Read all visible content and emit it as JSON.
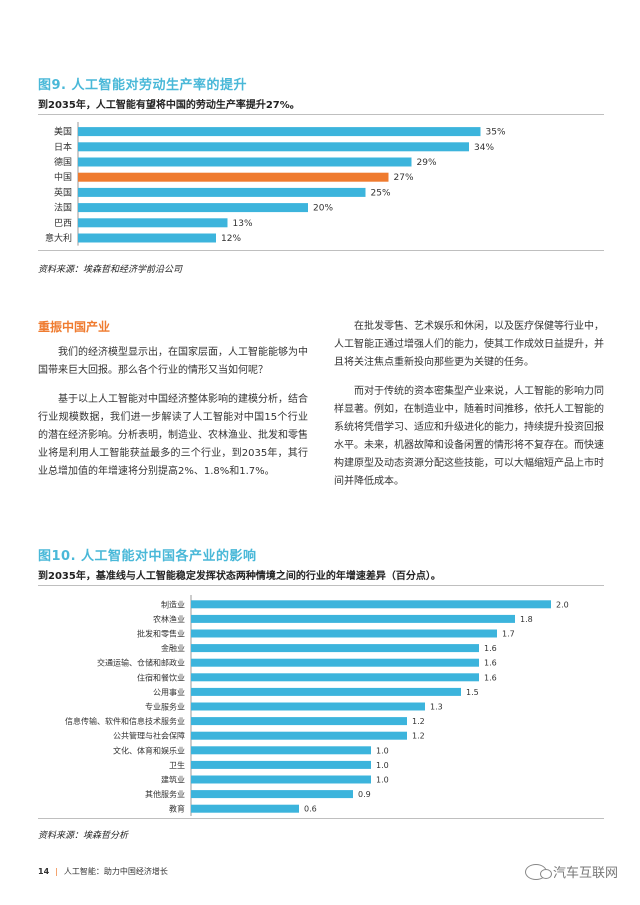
{
  "figure9": {
    "title": "图9. 人工智能对劳动生产率的提升",
    "subtitle": "到2035年，人工智能有望将中国的劳动生产率提升27%。",
    "source": "资料来源：埃森哲和经济学前沿公司"
  },
  "section": {
    "title": "重振中国产业",
    "left_paragraphs": [
      "我们的经济模型显示出，在国家层面，人工智能能够为中国带来巨大回报。那么各个行业的情形又当如何呢？",
      "基于以上人工智能对中国经济整体影响的建模分析，结合行业规模数据，我们进一步解读了人工智能对中国15个行业的潜在经济影响。分析表明，制造业、农林渔业、批发和零售业将是利用人工智能获益最多的三个行业，到2035年，其行业总增加值的年增速将分别提高2%、1.8%和1.7%。"
    ],
    "right_paragraphs": [
      "在批发零售、艺术娱乐和休闲，以及医疗保健等行业中，人工智能正通过增强人们的能力，使其工作成效日益提升，并且将关注焦点重新投向那些更为关键的任务。",
      "而对于传统的资本密集型产业来说，人工智能的影响力同样显著。例如，在制造业中，随着时间推移，依托人工智能的系统将凭借学习、适应和升级进化的能力，持续提升投资回报水平。未来，机器故障和设备闲置的情形将不复存在。而快速构建原型及动态资源分配这些技能，可以大幅缩短产品上市时间并降低成本。"
    ]
  },
  "figure10": {
    "title": "图10. 人工智能对中国各产业的影响",
    "subtitle": "到2035年，基准线与人工智能稳定发挥状态两种情境之间的行业的年增速差异（百分点）。",
    "source": "资料来源：埃森哲分析"
  },
  "footer": {
    "page": "14",
    "text": "人工智能：助力中国经济增长",
    "watermark": "汽车互联网"
  },
  "chart_data": [
    {
      "type": "bar",
      "orientation": "horizontal",
      "categories": [
        "美国",
        "日本",
        "德国",
        "中国",
        "英国",
        "法国",
        "巴西",
        "意大利"
      ],
      "values": [
        35,
        34,
        29,
        27,
        25,
        20,
        13,
        12
      ],
      "value_labels": [
        "35%",
        "34%",
        "29%",
        "27%",
        "25%",
        "20%",
        "13%",
        "12%"
      ],
      "highlight_index": 3,
      "colors": {
        "bar": "#3cb4dc",
        "highlight": "#ef7b2f",
        "axis": "#9a9a9a"
      }
    },
    {
      "type": "bar",
      "orientation": "horizontal",
      "categories": [
        "制造业",
        "农林渔业",
        "批发和零售业",
        "金融业",
        "交通运输、仓储和邮政业",
        "住宿和餐饮业",
        "公用事业",
        "专业服务业",
        "信息传输、软件和信息技术服务业",
        "公共管理与社会保障",
        "文化、体育和娱乐业",
        "卫生",
        "建筑业",
        "其他服务业",
        "教育"
      ],
      "values": [
        2.0,
        1.8,
        1.7,
        1.6,
        1.6,
        1.6,
        1.5,
        1.3,
        1.2,
        1.2,
        1.0,
        1.0,
        1.0,
        0.9,
        0.6
      ],
      "value_labels": [
        "2.0",
        "1.8",
        "1.7",
        "1.6",
        "1.6",
        "1.6",
        "1.5",
        "1.3",
        "1.2",
        "1.2",
        "1.0",
        "1.0",
        "1.0",
        "0.9",
        "0.6"
      ],
      "colors": {
        "bar": "#3cb4dc",
        "axis": "#9a9a9a"
      }
    }
  ]
}
